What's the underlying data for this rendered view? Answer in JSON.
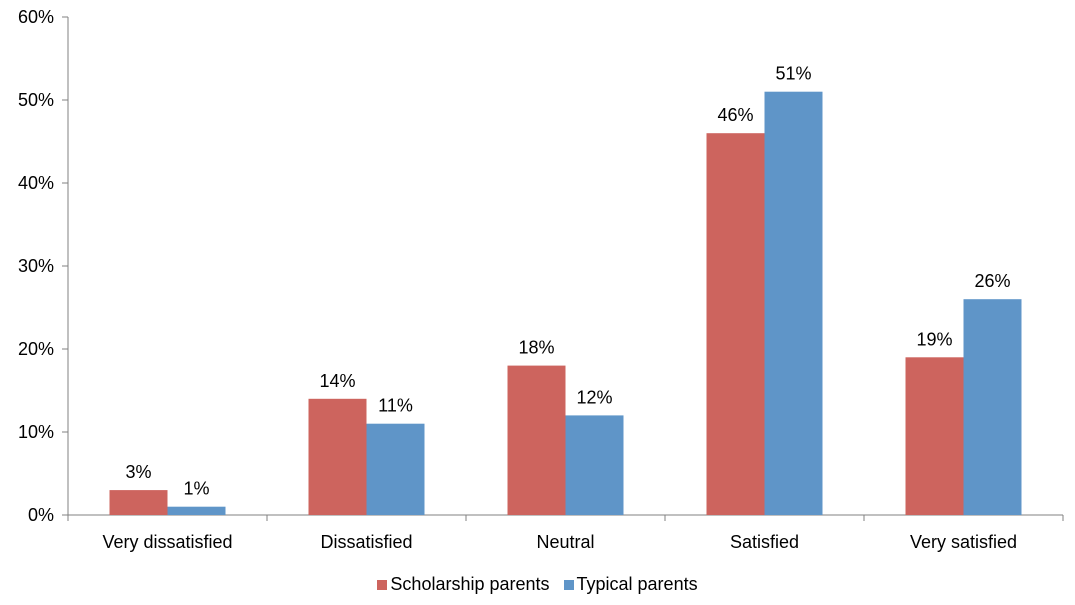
{
  "chart_data": {
    "type": "bar",
    "categories": [
      "Very dissatisfied",
      "Dissatisfied",
      "Neutral",
      "Satisfied",
      "Very satisfied"
    ],
    "series": [
      {
        "name": "Scholarship parents",
        "color": "#cd645e",
        "values": [
          3,
          14,
          18,
          46,
          19
        ],
        "labels": [
          "3%",
          "14%",
          "18%",
          "46%",
          "19%"
        ]
      },
      {
        "name": "Typical parents",
        "color": "#5f95c8",
        "values": [
          1,
          11,
          12,
          51,
          26
        ],
        "labels": [
          "1%",
          "11%",
          "12%",
          "51%",
          "26%"
        ]
      }
    ],
    "title": "",
    "xlabel": "",
    "ylabel": "",
    "ylim": [
      0,
      60
    ],
    "yticks": [
      "0%",
      "10%",
      "20%",
      "30%",
      "40%",
      "50%",
      "60%"
    ],
    "grid": false,
    "legend_position": "bottom"
  }
}
